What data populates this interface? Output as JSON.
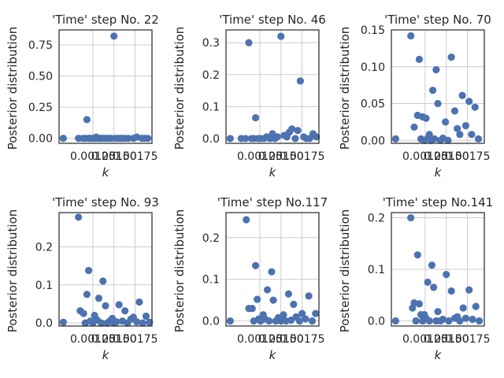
{
  "chart_data": [
    {
      "type": "scatter",
      "title": "'Time' step No. 22",
      "xlabel": "k",
      "ylabel": "Posterior distribution",
      "xlim": [
        0.00085,
        0.00195
      ],
      "ylim": [
        -0.04,
        0.87
      ],
      "xticks": [
        0.00125,
        0.0015,
        0.00175
      ],
      "xtick_labels": [
        "0.00125",
        "0.00150",
        "0.00175"
      ],
      "yticks": [
        0.0,
        0.25,
        0.5,
        0.75
      ],
      "ytick_labels": [
        "0.00",
        "0.25",
        "0.50",
        "0.75"
      ],
      "grid": true,
      "color": "#4c72b0",
      "x": [
        0.0009,
        0.00108,
        0.00113,
        0.00116,
        0.00118,
        0.0012,
        0.00121,
        0.00123,
        0.00125,
        0.00127,
        0.00129,
        0.00131,
        0.00133,
        0.00135,
        0.00137,
        0.0014,
        0.00142,
        0.00145,
        0.00147,
        0.0015,
        0.00152,
        0.00155,
        0.00158,
        0.0016,
        0.00163,
        0.00167,
        0.00173,
        0.00177,
        0.00183,
        0.00186,
        0.0019
      ],
      "y": [
        0.0,
        0.0,
        0.0,
        0.0,
        0.15,
        0.0,
        0.0,
        0.0,
        0.0,
        0.0,
        0.01,
        0.0,
        0.0,
        0.0,
        0.0,
        0.0,
        0.0,
        0.0,
        0.0,
        0.82,
        0.0,
        0.0,
        0.0,
        0.0,
        0.0,
        0.0,
        0.0,
        0.01,
        0.0,
        0.0,
        0.0
      ]
    },
    {
      "type": "scatter",
      "title": "'Time' step No. 46",
      "xlabel": "k",
      "ylabel": "Posterior distribution",
      "xlim": [
        0.00085,
        0.00195
      ],
      "ylim": [
        -0.015,
        0.34
      ],
      "xticks": [
        0.00125,
        0.0015,
        0.00175
      ],
      "xtick_labels": [
        "0.00125",
        "0.00150",
        "0.00175"
      ],
      "yticks": [
        0.0,
        0.1,
        0.2,
        0.3
      ],
      "ytick_labels": [
        "0.0",
        "0.1",
        "0.2",
        "0.3"
      ],
      "grid": true,
      "color": "#4c72b0",
      "x": [
        0.0009,
        0.00103,
        0.00108,
        0.00112,
        0.00115,
        0.00118,
        0.0012,
        0.00123,
        0.00126,
        0.0013,
        0.00133,
        0.00137,
        0.0014,
        0.00143,
        0.00146,
        0.0015,
        0.00154,
        0.00157,
        0.0016,
        0.00163,
        0.00167,
        0.0017,
        0.00173,
        0.00177,
        0.0018,
        0.00184,
        0.00188,
        0.00192
      ],
      "y": [
        0.0,
        0.0,
        0.0,
        0.3,
        0.0,
        0.0,
        0.065,
        0.0,
        0.0,
        0.0,
        0.005,
        0.0,
        0.015,
        0.0,
        0.005,
        0.32,
        0.01,
        0.005,
        0.02,
        0.03,
        0.0,
        0.025,
        0.18,
        0.005,
        0.0,
        0.0,
        0.015,
        0.005
      ]
    },
    {
      "type": "scatter",
      "title": "'Time' step No. 70",
      "xlabel": "k",
      "ylabel": "Posterior distribution",
      "xlim": [
        0.00085,
        0.00195
      ],
      "ylim": [
        -0.004,
        0.15
      ],
      "xticks": [
        0.00125,
        0.0015,
        0.00175
      ],
      "xtick_labels": [
        "0.00125",
        "0.00150",
        "0.00175"
      ],
      "yticks": [
        0.0,
        0.05,
        0.1,
        0.15
      ],
      "ytick_labels": [
        "0.00",
        "0.05",
        "0.10",
        "0.15"
      ],
      "grid": true,
      "color": "#4c72b0",
      "x": [
        0.0009,
        0.00108,
        0.00112,
        0.00116,
        0.00118,
        0.0012,
        0.00122,
        0.00124,
        0.00126,
        0.00128,
        0.0013,
        0.00132,
        0.00134,
        0.00136,
        0.00138,
        0.0014,
        0.00143,
        0.00146,
        0.00149,
        0.00152,
        0.00156,
        0.0016,
        0.00163,
        0.00166,
        0.00169,
        0.00173,
        0.00177,
        0.0018,
        0.00184,
        0.00188
      ],
      "y": [
        0.002,
        0.142,
        0.018,
        0.034,
        0.11,
        0.002,
        0.032,
        0.0,
        0.03,
        0.003,
        0.008,
        0.0,
        0.068,
        0.002,
        0.096,
        0.05,
        0.0,
        0.003,
        0.025,
        0.0,
        0.113,
        0.04,
        0.016,
        0.008,
        0.061,
        0.02,
        0.053,
        0.008,
        0.045,
        0.002
      ]
    },
    {
      "type": "scatter",
      "title": "'Time' step No. 93",
      "xlabel": "k",
      "ylabel": "Posterior distribution",
      "xlim": [
        0.00085,
        0.00195
      ],
      "ylim": [
        -0.008,
        0.29
      ],
      "xticks": [
        0.00125,
        0.0015,
        0.00175
      ],
      "xtick_labels": [
        "0.00125",
        "0.00150",
        "0.00175"
      ],
      "yticks": [
        0.0,
        0.1,
        0.2
      ],
      "ytick_labels": [
        "0.0",
        "0.1",
        "0.2"
      ],
      "grid": true,
      "color": "#4c72b0",
      "x": [
        0.0009,
        0.00108,
        0.0011,
        0.00114,
        0.00116,
        0.00118,
        0.0012,
        0.00122,
        0.00125,
        0.00127,
        0.0013,
        0.00132,
        0.00135,
        0.00137,
        0.0014,
        0.00142,
        0.00145,
        0.00148,
        0.0015,
        0.00153,
        0.00156,
        0.0016,
        0.00163,
        0.00166,
        0.0017,
        0.00173,
        0.00177,
        0.0018,
        0.00184,
        0.00188,
        0.00192
      ],
      "y": [
        0.002,
        0.278,
        0.032,
        0.025,
        0.0,
        0.075,
        0.138,
        0.005,
        0.0,
        0.02,
        0.008,
        0.065,
        0.0,
        0.11,
        0.045,
        0.0,
        0.005,
        0.012,
        0.0,
        0.003,
        0.048,
        0.005,
        0.032,
        0.0,
        0.01,
        0.015,
        0.003,
        0.055,
        0.0,
        0.018,
        0.002
      ]
    },
    {
      "type": "scatter",
      "title": "'Time' step No.117",
      "xlabel": "k",
      "ylabel": "Posterior distribution",
      "xlim": [
        0.00085,
        0.00195
      ],
      "ylim": [
        -0.012,
        0.26
      ],
      "xticks": [
        0.00125,
        0.0015,
        0.00175
      ],
      "xtick_labels": [
        "0.00125",
        "0.00150",
        "0.00175"
      ],
      "yticks": [
        0.0,
        0.1,
        0.2
      ],
      "ytick_labels": [
        "0.0",
        "0.1",
        "0.2"
      ],
      "grid": true,
      "color": "#4c72b0",
      "x": [
        0.0009,
        0.00109,
        0.00112,
        0.00116,
        0.00118,
        0.0012,
        0.00122,
        0.00124,
        0.00126,
        0.00129,
        0.00131,
        0.00134,
        0.00136,
        0.00139,
        0.00141,
        0.00144,
        0.00147,
        0.0015,
        0.00153,
        0.00156,
        0.00159,
        0.00162,
        0.00165,
        0.00168,
        0.00172,
        0.00175,
        0.00179,
        0.00183,
        0.00187,
        0.00191
      ],
      "y": [
        0.0,
        0.243,
        0.03,
        0.03,
        0.0,
        0.133,
        0.052,
        0.005,
        0.0,
        0.015,
        0.005,
        0.075,
        0.0,
        0.118,
        0.05,
        0.0,
        0.008,
        0.0,
        0.015,
        0.0,
        0.065,
        0.002,
        0.04,
        0.01,
        0.0,
        0.018,
        0.005,
        0.06,
        0.0,
        0.018
      ]
    },
    {
      "type": "scatter",
      "title": "'Time' step No.141",
      "xlabel": "k",
      "ylabel": "Posterior distribution",
      "xlim": [
        0.00085,
        0.00195
      ],
      "ylim": [
        -0.01,
        0.21
      ],
      "xticks": [
        0.00125,
        0.0015,
        0.00175
      ],
      "xtick_labels": [
        "0.00125",
        "0.00150",
        "0.00175"
      ],
      "yticks": [
        0.0,
        0.1,
        0.2
      ],
      "ytick_labels": [
        "0.0",
        "0.1",
        "0.2"
      ],
      "grid": true,
      "color": "#4c72b0",
      "x": [
        0.0009,
        0.00108,
        0.0011,
        0.00112,
        0.00114,
        0.00116,
        0.00118,
        0.0012,
        0.00122,
        0.00124,
        0.00126,
        0.00128,
        0.0013,
        0.00133,
        0.00135,
        0.00138,
        0.0014,
        0.00143,
        0.00146,
        0.0015,
        0.00153,
        0.00156,
        0.0016,
        0.00163,
        0.00166,
        0.0017,
        0.00173,
        0.00177,
        0.00181,
        0.00185,
        0.00189
      ],
      "y": [
        0.0,
        0.2,
        0.025,
        0.035,
        0.0,
        0.128,
        0.033,
        0.012,
        0.0,
        0.012,
        0.005,
        0.075,
        0.0,
        0.108,
        0.065,
        0.0,
        0.018,
        0.0,
        0.003,
        0.09,
        0.0,
        0.058,
        0.005,
        0.008,
        0.0,
        0.025,
        0.005,
        0.06,
        0.003,
        0.028,
        0.0
      ]
    }
  ]
}
